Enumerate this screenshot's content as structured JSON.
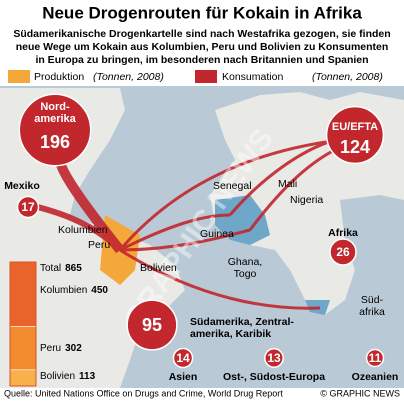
{
  "header": {
    "title": "Neue Drogenrouten für Kokain in Afrika",
    "subtitle_lines": [
      "Südamerikanische Drogenkartelle sind nach Westafrika gezogen, sie finden",
      "neue Wege um Kokain aus Kolumbien, Peru und Bolivien zu Konsumenten",
      "in Europa zu bringen, im besonderen nach Britannien und Spanien"
    ]
  },
  "legend": {
    "production": "Produktion",
    "consumption": "Konsumation",
    "unit": "(Tonnen, 2008)"
  },
  "consumers": [
    {
      "lines": [
        "Nord-",
        "amerika"
      ],
      "value": 196
    },
    {
      "lines": [
        "EU/EFTA"
      ],
      "value": 124
    },
    {
      "lines": [
        "Mexiko"
      ],
      "value": 17
    },
    {
      "lines": [
        "Afrika"
      ],
      "value": 26
    },
    {
      "lines": [
        "Südamerika, Zentral-",
        "amerika, Karibik"
      ],
      "value": 95
    },
    {
      "lines": [
        "Asien"
      ],
      "value": 14
    },
    {
      "lines": [
        "Ost-, Südost-Europa"
      ],
      "value": 13
    },
    {
      "lines": [
        "Ozeanien"
      ],
      "value": 11
    }
  ],
  "production": [
    {
      "name": "Total",
      "value": 865
    },
    {
      "name": "Kolumbien",
      "value": 450
    },
    {
      "name": "Peru",
      "value": 302
    },
    {
      "name": "Bolivien",
      "value": 113
    }
  ],
  "places": [
    [
      "Kolumbien"
    ],
    [
      "Peru"
    ],
    [
      "Bolivien"
    ],
    [
      "Senegal"
    ],
    [
      "Mali"
    ],
    [
      "Nigeria"
    ],
    [
      "Guinea"
    ],
    [
      "Ghana,",
      "Togo"
    ],
    [
      "Süd-",
      "afrika"
    ]
  ],
  "watermark": "GRAPHIC NEWS",
  "footer": {
    "source": "Quelle: United Nations Office on Drugs and Crime, World Drug Report",
    "credit": "© GRAPHIC NEWS"
  }
}
